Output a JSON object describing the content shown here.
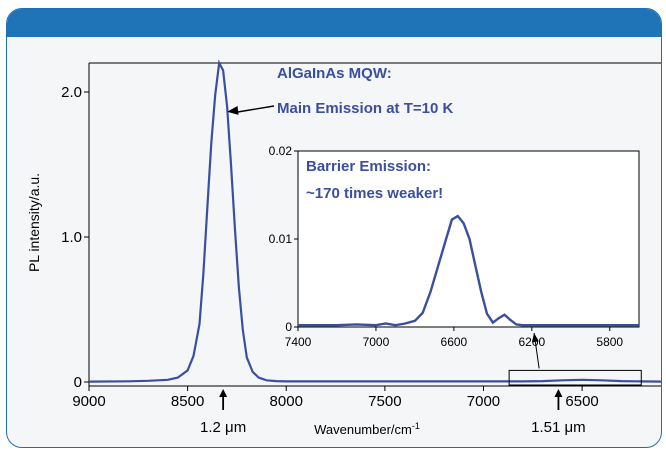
{
  "colors": {
    "banner": "#1f73b7",
    "series": "#3a4f9e",
    "annotation": "#3a4f9e"
  },
  "chart_data": [
    {
      "type": "line",
      "title": "",
      "xlabel": "Wavenumber/cm",
      "xlabel_sup": "-1",
      "ylabel": "PL intensity/a.u.",
      "xlim": [
        9000,
        6100
      ],
      "ylim": [
        0,
        2.2
      ],
      "x_ticks": [
        9000,
        8500,
        8000,
        7500,
        7000,
        6500
      ],
      "y_ticks": [
        {
          "value": 0,
          "label": "0"
        },
        {
          "value": 1.0,
          "label": "1.0"
        },
        {
          "value": 2.0,
          "label": "2.0"
        }
      ],
      "series": [
        {
          "x": [
            9000,
            8800,
            8700,
            8600,
            8550,
            8500,
            8470,
            8440,
            8420,
            8400,
            8380,
            8360,
            8340,
            8320,
            8300,
            8280,
            8260,
            8240,
            8220,
            8200,
            8170,
            8140,
            8100,
            8050,
            8000,
            7500,
            7000,
            6900,
            6800,
            6700,
            6600,
            6500,
            6400,
            6300,
            6200,
            6100
          ],
          "y": [
            0.003,
            0.005,
            0.008,
            0.015,
            0.03,
            0.08,
            0.18,
            0.4,
            0.75,
            1.2,
            1.65,
            1.98,
            2.2,
            2.15,
            1.9,
            1.5,
            1.05,
            0.65,
            0.36,
            0.17,
            0.07,
            0.03,
            0.012,
            0.006,
            0.004,
            0.004,
            0.004,
            0.004,
            0.004,
            0.006,
            0.012,
            0.015,
            0.012,
            0.006,
            0.004,
            0.003
          ]
        }
      ],
      "annotations": [
        {
          "text": "AlGaInAs MQW:"
        },
        {
          "text": "Main Emission  at T=10 K"
        },
        {
          "text": "1.2 μm"
        },
        {
          "text": "1.51 μm"
        }
      ]
    },
    {
      "type": "line",
      "title": "",
      "xlim": [
        7400,
        5650
      ],
      "ylim": [
        0,
        0.02
      ],
      "x_ticks": [
        7400,
        7000,
        6600,
        6200,
        5800
      ],
      "y_ticks": [
        {
          "value": 0,
          "label": "0"
        },
        {
          "value": 0.01,
          "label": "0.01"
        },
        {
          "value": 0.02,
          "label": "0.02"
        }
      ],
      "series": [
        {
          "x": [
            7400,
            7300,
            7200,
            7100,
            7000,
            6950,
            6900,
            6850,
            6800,
            6760,
            6720,
            6680,
            6640,
            6610,
            6580,
            6550,
            6520,
            6490,
            6460,
            6430,
            6400,
            6370,
            6340,
            6310,
            6280,
            6250,
            6200,
            6100,
            6000,
            5900,
            5800,
            5700,
            5650
          ],
          "y": [
            0.0002,
            0.0002,
            0.0002,
            0.0003,
            0.0002,
            0.0004,
            0.0002,
            0.0004,
            0.0007,
            0.0016,
            0.004,
            0.007,
            0.01,
            0.0122,
            0.0126,
            0.0118,
            0.01,
            0.007,
            0.004,
            0.0015,
            0.0005,
            0.001,
            0.0014,
            0.0008,
            0.0003,
            0.0002,
            0.0002,
            0.0002,
            0.0002,
            0.0002,
            0.0002,
            0.0002,
            0.0002
          ]
        }
      ],
      "annotations": [
        {
          "text": "Barrier Emission:"
        },
        {
          "text": "~170 times weaker!"
        }
      ]
    }
  ]
}
